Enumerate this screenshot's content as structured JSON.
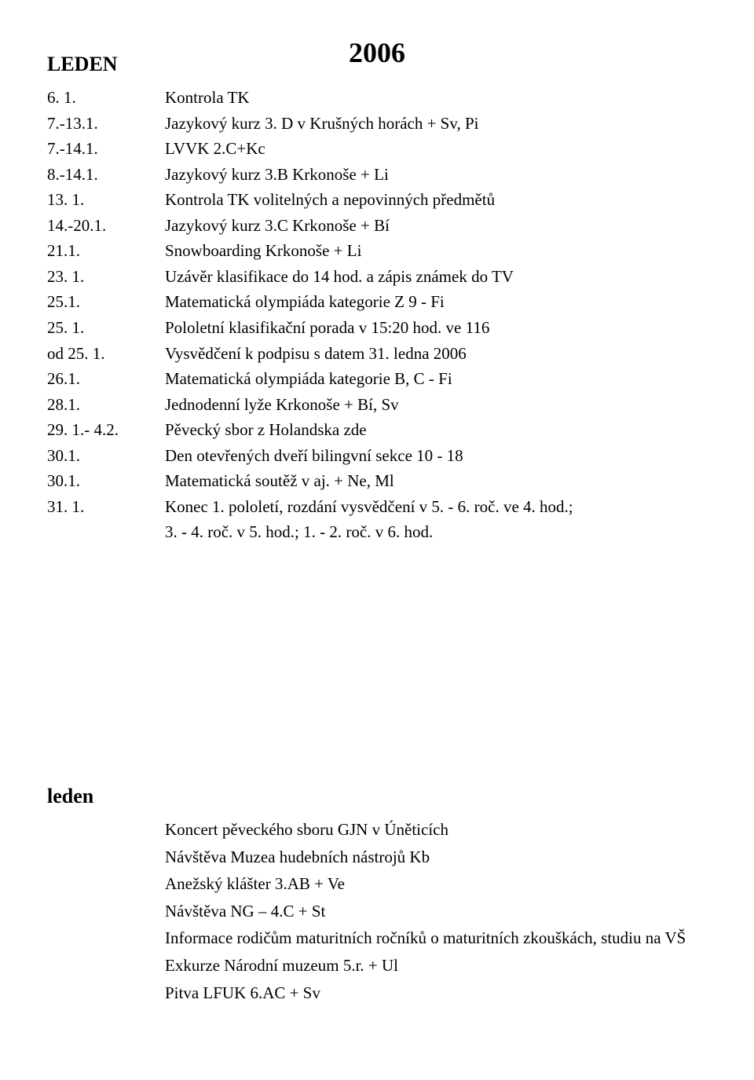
{
  "year": "2006",
  "month_upper": "LEDEN",
  "schedule": [
    {
      "date": "6. 1.",
      "desc": "Kontrola TK"
    },
    {
      "date": "7.-13.1.",
      "desc": "Jazykový kurz 3. D v Krušných horách + Sv, Pi"
    },
    {
      "date": "7.-14.1.",
      "desc": "LVVK 2.C+Kc"
    },
    {
      "date": "8.-14.1.",
      "desc": "Jazykový kurz 3.B Krkonoše + Li"
    },
    {
      "date": "13. 1.",
      "desc": "Kontrola TK volitelných a nepovinných předmětů"
    },
    {
      "date": "14.-20.1.",
      "desc": "Jazykový kurz 3.C Krkonoše + Bí"
    },
    {
      "date": "21.1.",
      "desc": "Snowboarding Krkonoše + Li"
    },
    {
      "date": "23. 1.",
      "desc": "Uzávěr klasifikace do 14 hod. a zápis známek do TV"
    },
    {
      "date": "25.1.",
      "desc": "Matematická olympiáda kategorie Z 9 -  Fi"
    },
    {
      "date": "25. 1.",
      "desc": "Pololetní klasifikační porada v 15:20 hod. ve 116"
    },
    {
      "date": "od 25. 1.",
      "desc": "Vysvědčení k podpisu s datem 31. ledna 2006"
    },
    {
      "date": "26.1.",
      "desc": "Matematická olympiáda kategorie  B, C  -  Fi"
    },
    {
      "date": "28.1.",
      "desc": "Jednodenní lyže Krkonoše + Bí, Sv"
    },
    {
      "date": "29. 1.- 4.2.",
      "desc": "Pěvecký sbor z Holandska zde"
    },
    {
      "date": "30.1.",
      "desc": "Den otevřených dveří bilingvní sekce 10 - 18"
    },
    {
      "date": "30.1.",
      "desc": "Matematická soutěž v aj. + Ne, Ml"
    },
    {
      "date": "31. 1.",
      "desc": "Konec 1. pololetí, rozdání vysvědčení v 5. - 6. roč. ve 4. hod.;"
    },
    {
      "date": "",
      "desc": "3. - 4. roč. v 5. hod.; 1. - 2. roč. v 6. hod."
    }
  ],
  "month_lower": "leden",
  "notes": [
    "Koncert pěveckého sboru GJN v Úněticích",
    "Návštěva Muzea hudebních nástrojů Kb",
    "Anežský klášter 3.AB + Ve",
    "Návštěva NG – 4.C + St",
    "Informace rodičům maturitních ročníků o maturitních zkouškách, studiu na VŠ",
    "Exkurze Národní muzeum 5.r. + Ul",
    "Pitva LFUK 6.AC + Sv"
  ]
}
